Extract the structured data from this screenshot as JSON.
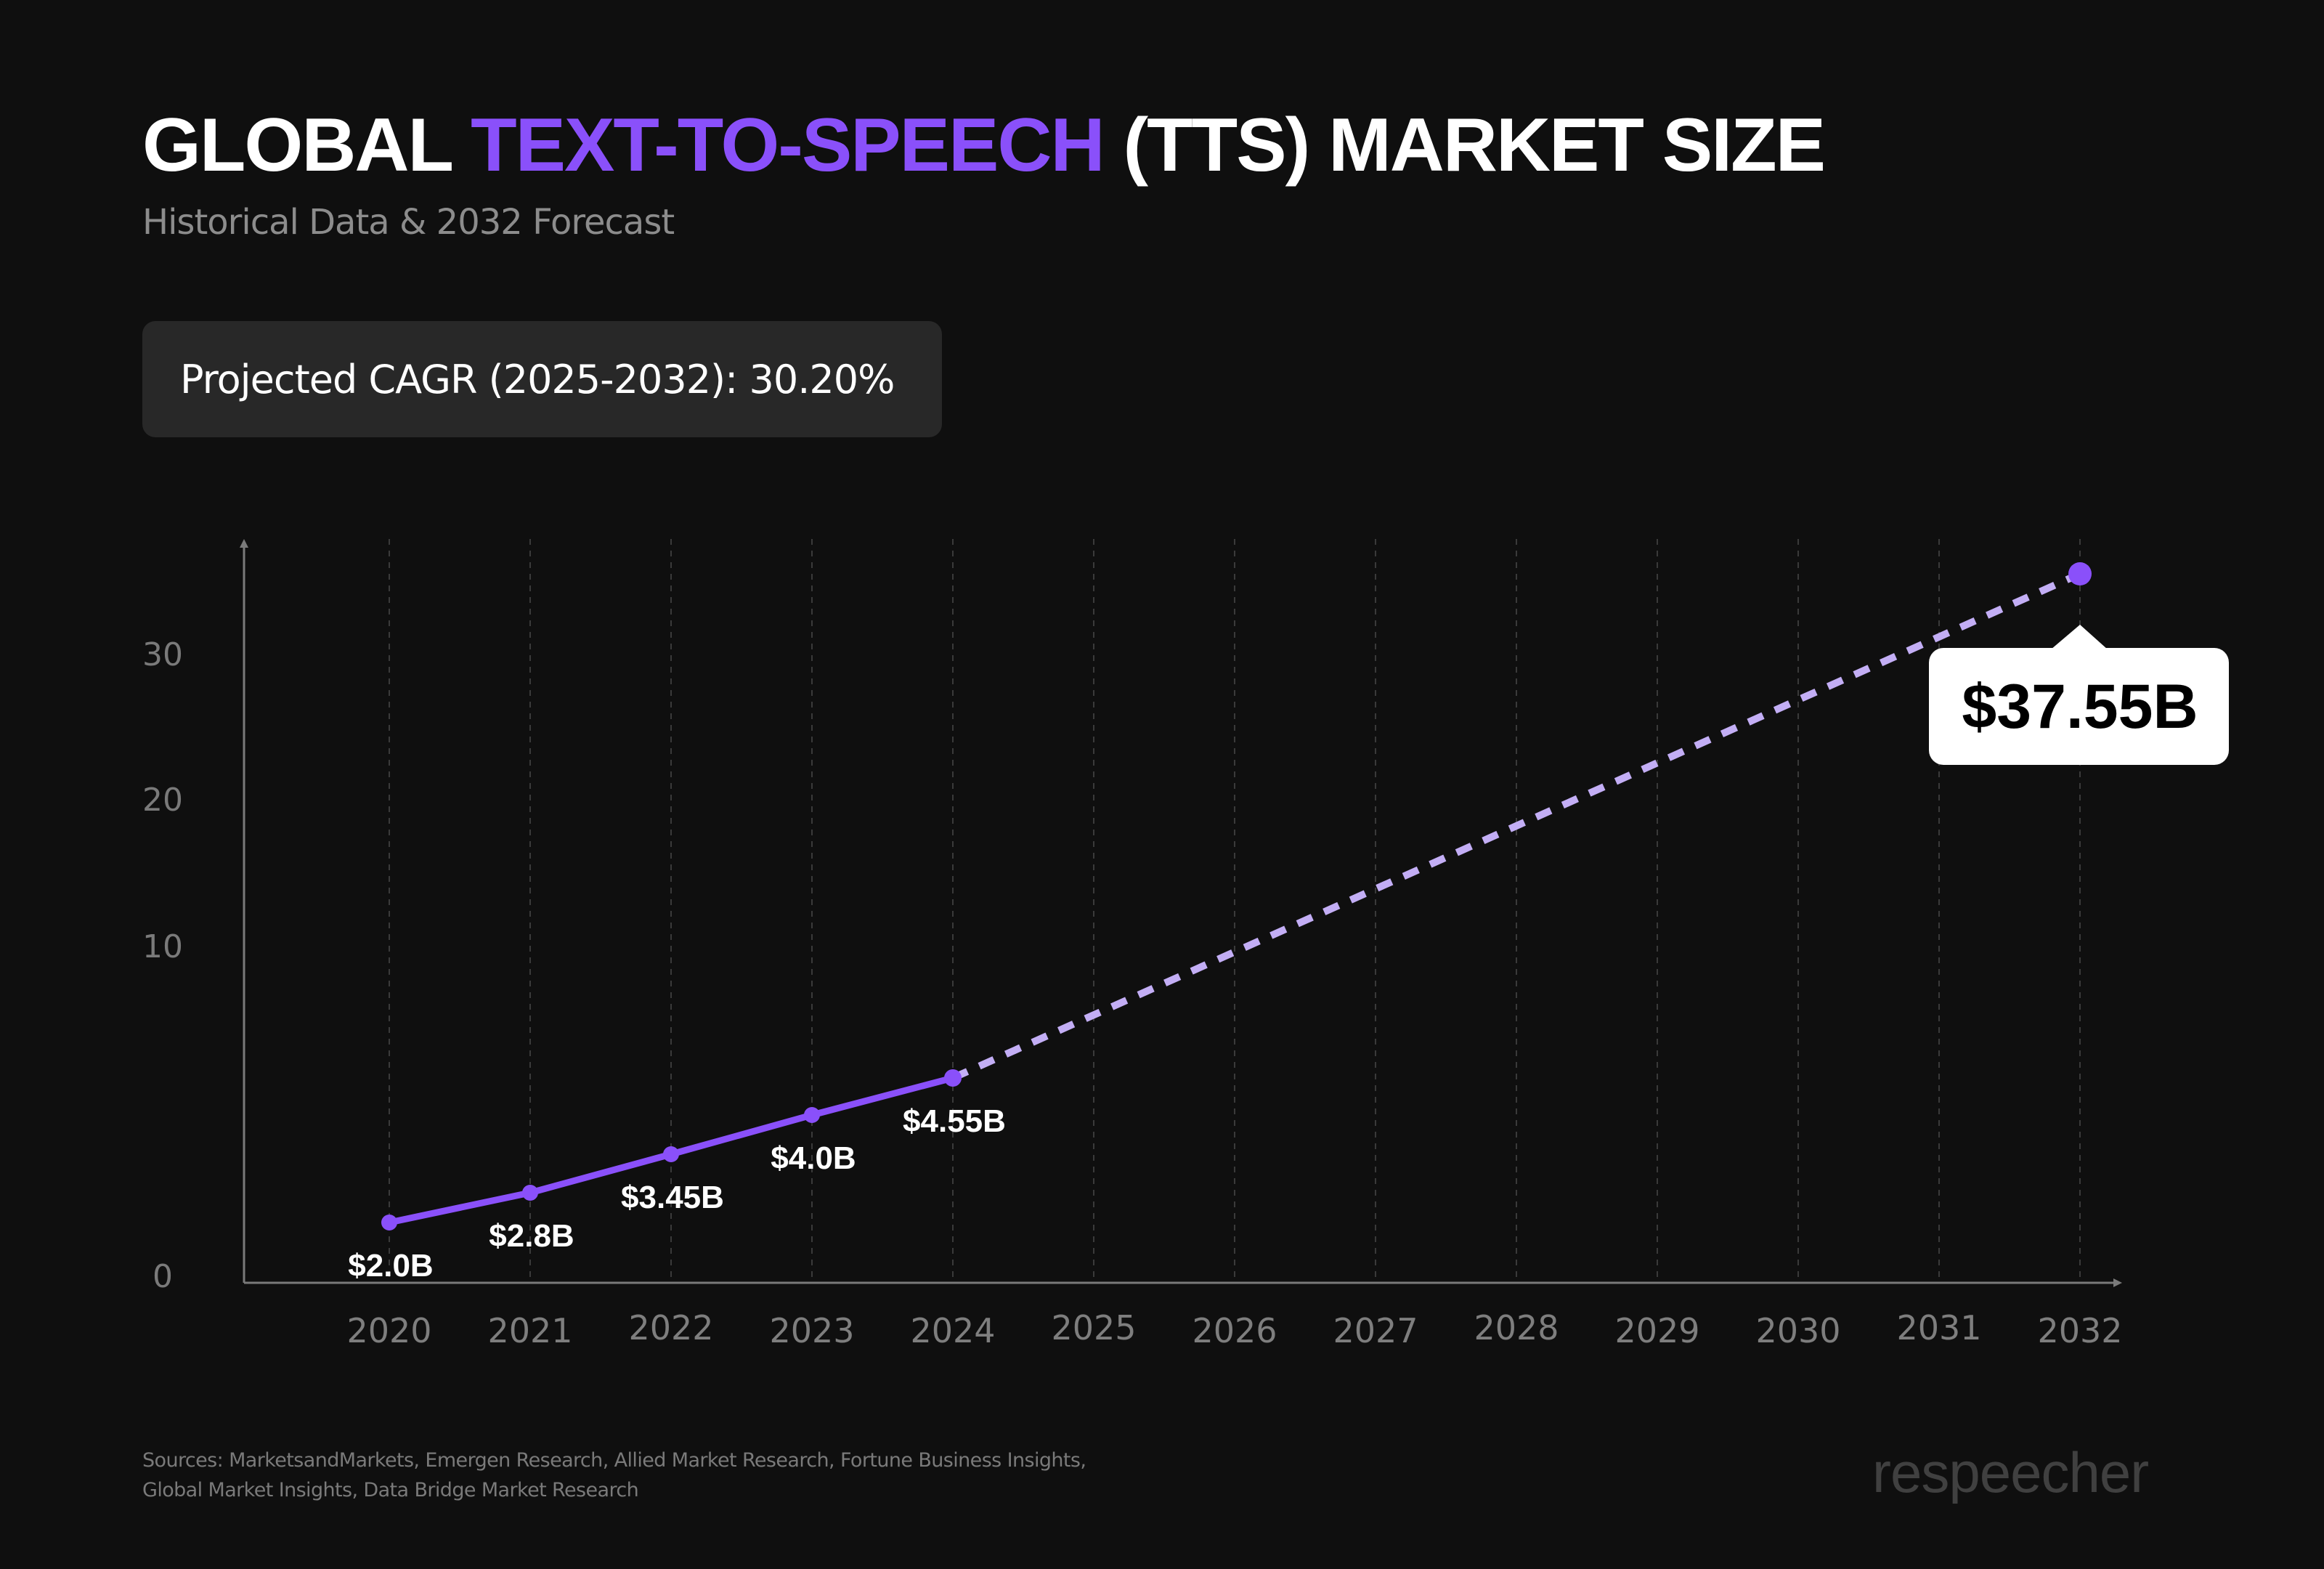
{
  "title": {
    "part1": "GLOBAL ",
    "accent": "TEXT-TO-SPEECH",
    "part2": " (TTS) MARKET SIZE"
  },
  "subtitle": "Historical Data & 2032 Forecast",
  "cagr_badge": "Projected CAGR (2025-2032): 30.20%",
  "colors": {
    "background": "#0f0f0f",
    "accent": "#8a50fa",
    "forecast_line": "#c3aef5",
    "axis": "#7a7a7a",
    "grid": "#3a3a3a",
    "badge_bg": "#282828"
  },
  "chart_data": {
    "type": "line",
    "title": "Global Text-to-Speech (TTS) Market Size",
    "xlabel": "",
    "ylabel": "",
    "ylim": [
      0,
      38
    ],
    "grid": "vertical-dashed",
    "y_ticks": [
      0,
      10,
      20,
      30
    ],
    "y_tick_labels": [
      "0",
      "10",
      "20",
      "30"
    ],
    "categories": [
      "2020",
      "2021",
      "2022",
      "2023",
      "2024",
      "2025",
      "2026",
      "2027",
      "2028",
      "2029",
      "2030",
      "2031",
      "2032"
    ],
    "series": [
      {
        "name": "Historical",
        "style": "solid",
        "x": [
          "2020",
          "2021",
          "2022",
          "2023",
          "2024"
        ],
        "values": [
          2.0,
          2.8,
          3.45,
          4.0,
          4.55
        ],
        "labels": [
          "$2.0B",
          "$2.8B",
          "$3.45B",
          "$4.0B",
          "$4.55B"
        ]
      },
      {
        "name": "Forecast",
        "style": "dashed",
        "x": [
          "2024",
          "2032"
        ],
        "values": [
          4.55,
          37.55
        ],
        "labels": [
          "",
          "$37.55B"
        ]
      }
    ],
    "callout": {
      "x": "2032",
      "value": 37.55,
      "label": "$37.55B"
    }
  },
  "sources": "Sources: MarketsandMarkets, Emergen Research, Allied Market Research, Fortune Business Insights, Global Market Insights, Data Bridge Market Research",
  "logo": "respeecher"
}
